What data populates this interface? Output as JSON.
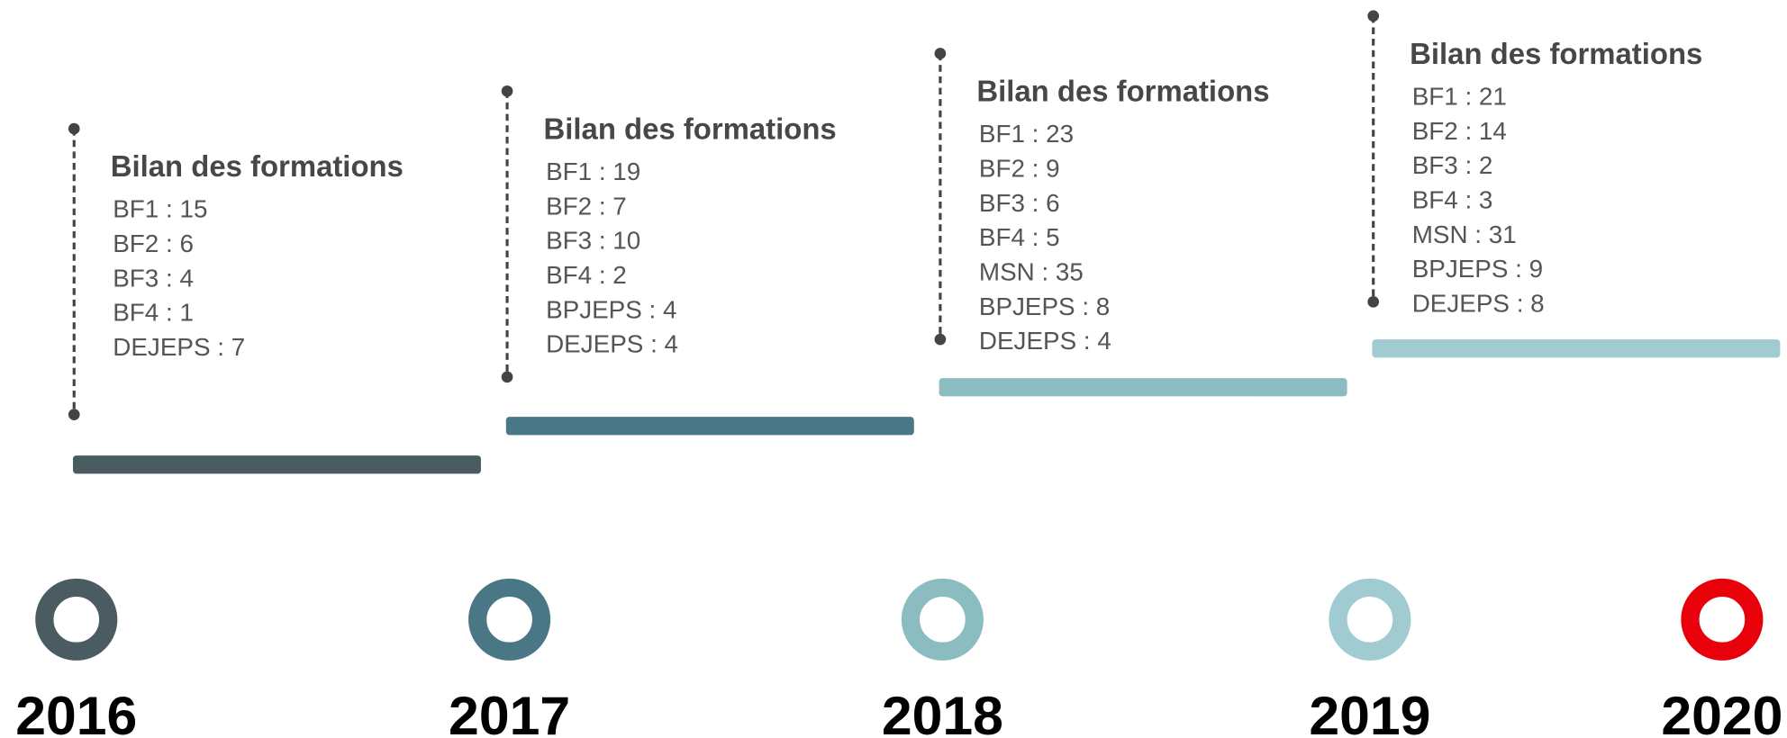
{
  "timeline": {
    "entries": [
      {
        "year": "2016",
        "color": "#4a5c61",
        "title": "Bilan des formations",
        "items": [
          "BF1 : 15",
          "BF2 : 6",
          "BF3 : 4",
          "BF4 : 1",
          "DEJEPS : 7"
        ]
      },
      {
        "year": "2017",
        "color": "#4a7785",
        "title": "Bilan des formations",
        "items": [
          "BF1 : 19",
          "BF2 : 7",
          "BF3 : 10",
          "BF4 : 2",
          "BPJEPS : 4",
          "DEJEPS : 4"
        ]
      },
      {
        "year": "2018",
        "color": "#8bbcc0",
        "title": "Bilan des formations",
        "items": [
          "BF1 : 23",
          "BF2 : 9",
          "BF3 : 6",
          "BF4 : 5",
          "MSN : 35",
          "BPJEPS : 8",
          "DEJEPS : 4"
        ]
      },
      {
        "year": "2019",
        "color": "#9fcbd1",
        "title": "Bilan des formations",
        "items": [
          "BF1 : 21",
          "BF2 : 14",
          "BF3 : 2",
          "BF4 : 3",
          "MSN : 31",
          "BPJEPS : 9",
          "DEJEPS : 8"
        ]
      },
      {
        "year": "2020",
        "color": "#e8000b"
      }
    ]
  }
}
